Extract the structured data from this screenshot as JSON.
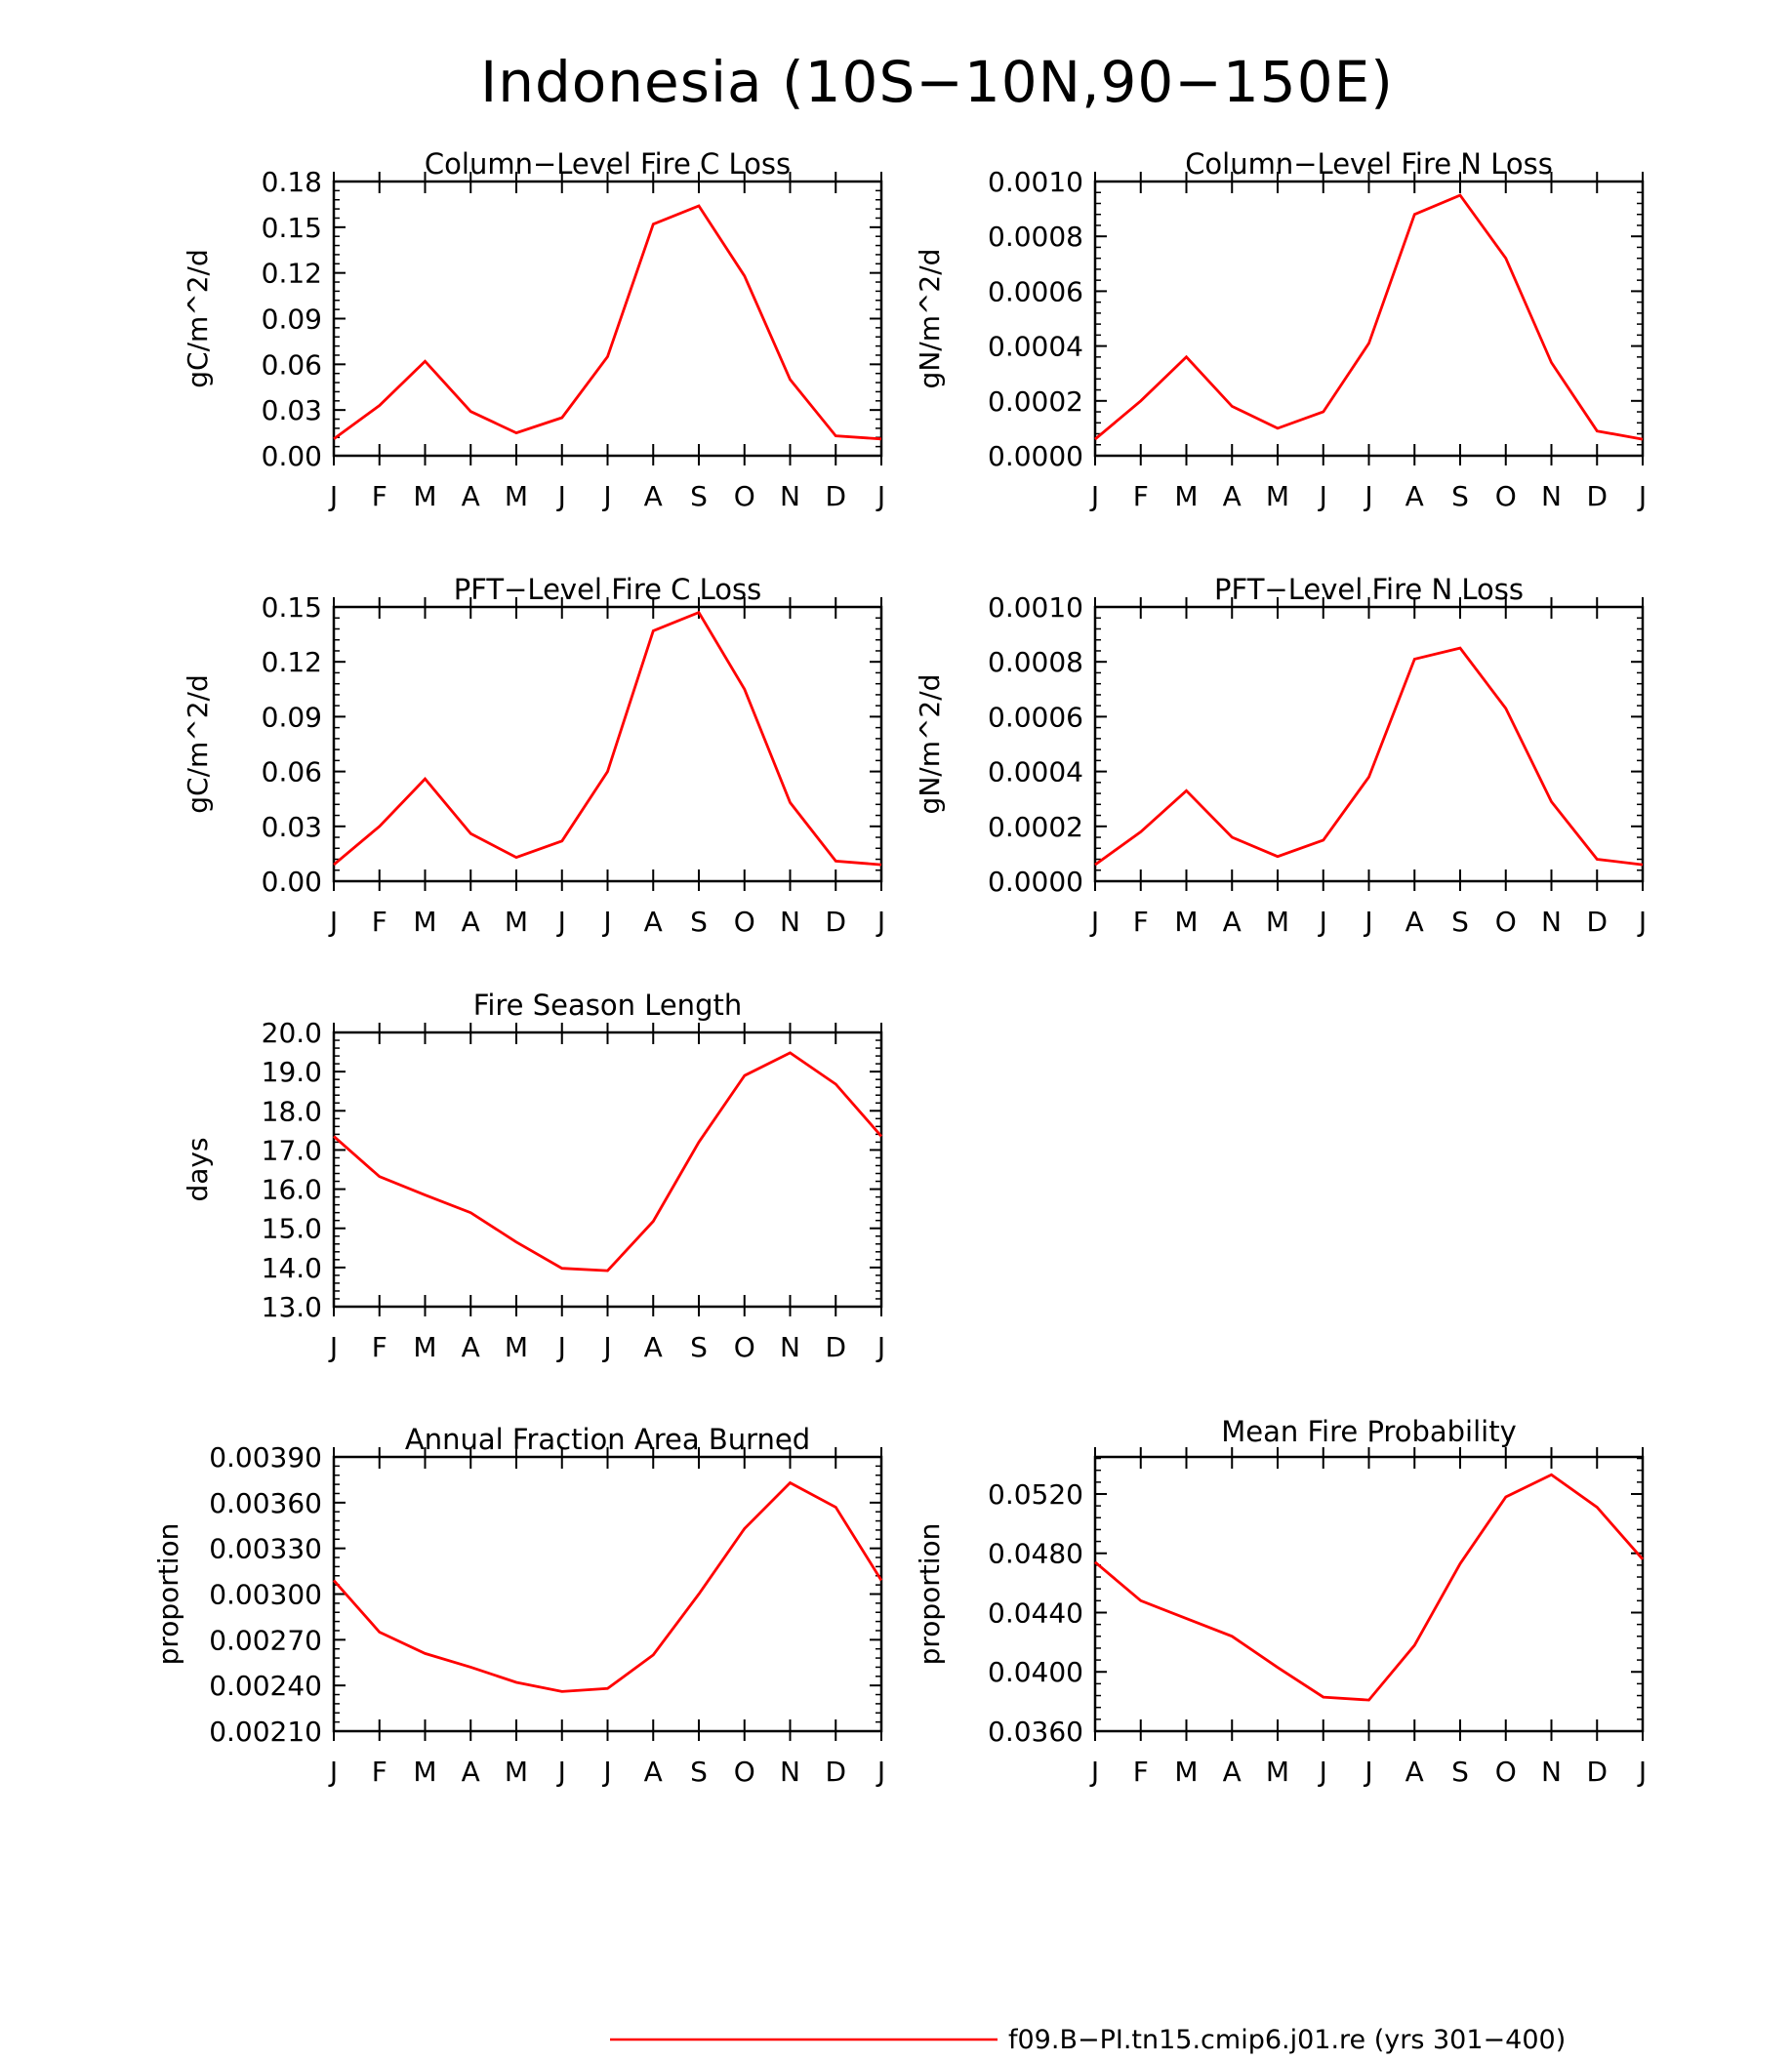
{
  "title": "Indonesia (10S−10N,90−150E)",
  "series_color": "#ff0000",
  "legend": {
    "label": "f09.B−PI.tn15.cmip6.j01.re (yrs 301−400)"
  },
  "chart_data": [
    {
      "type": "line",
      "title": "Column−Level Fire C Loss",
      "ylabel": "gC/m^2/d",
      "x": [
        "J",
        "F",
        "M",
        "A",
        "M",
        "J",
        "J",
        "A",
        "S",
        "O",
        "N",
        "D",
        "J"
      ],
      "ylim": [
        0.0,
        0.18
      ],
      "yticks": [
        "0.00",
        "0.03",
        "0.06",
        "0.09",
        "0.12",
        "0.15",
        "0.18"
      ],
      "series": [
        {
          "values": [
            0.011,
            0.033,
            0.062,
            0.029,
            0.015,
            0.025,
            0.065,
            0.152,
            0.164,
            0.118,
            0.05,
            0.013,
            0.011
          ]
        }
      ]
    },
    {
      "type": "line",
      "title": "Column−Level Fire N Loss",
      "ylabel": "gN/m^2/d",
      "x": [
        "J",
        "F",
        "M",
        "A",
        "M",
        "J",
        "J",
        "A",
        "S",
        "O",
        "N",
        "D",
        "J"
      ],
      "ylim": [
        0.0,
        0.001
      ],
      "yticks": [
        "0.0000",
        "0.0002",
        "0.0004",
        "0.0006",
        "0.0008",
        "0.0010"
      ],
      "series": [
        {
          "values": [
            6e-05,
            0.0002,
            0.00036,
            0.00018,
            0.0001,
            0.00016,
            0.00041,
            0.00088,
            0.00095,
            0.00072,
            0.00034,
            9e-05,
            6e-05
          ]
        }
      ]
    },
    {
      "type": "line",
      "title": "PFT−Level Fire C Loss",
      "ylabel": "gC/m^2/d",
      "x": [
        "J",
        "F",
        "M",
        "A",
        "M",
        "J",
        "J",
        "A",
        "S",
        "O",
        "N",
        "D",
        "J"
      ],
      "ylim": [
        0.0,
        0.15
      ],
      "yticks": [
        "0.00",
        "0.03",
        "0.06",
        "0.09",
        "0.12",
        "0.15"
      ],
      "series": [
        {
          "values": [
            0.009,
            0.03,
            0.056,
            0.026,
            0.013,
            0.022,
            0.06,
            0.137,
            0.147,
            0.105,
            0.043,
            0.011,
            0.009
          ]
        }
      ]
    },
    {
      "type": "line",
      "title": "PFT−Level Fire N Loss",
      "ylabel": "gN/m^2/d",
      "x": [
        "J",
        "F",
        "M",
        "A",
        "M",
        "J",
        "J",
        "A",
        "S",
        "O",
        "N",
        "D",
        "J"
      ],
      "ylim": [
        0.0,
        0.001
      ],
      "yticks": [
        "0.0000",
        "0.0002",
        "0.0004",
        "0.0006",
        "0.0008",
        "0.0010"
      ],
      "series": [
        {
          "values": [
            6e-05,
            0.00018,
            0.00033,
            0.00016,
            9e-05,
            0.00015,
            0.00038,
            0.00081,
            0.00085,
            0.00063,
            0.00029,
            8e-05,
            6e-05
          ]
        }
      ]
    },
    {
      "type": "line",
      "title": "Fire Season Length",
      "ylabel": "days",
      "x": [
        "J",
        "F",
        "M",
        "A",
        "M",
        "J",
        "J",
        "A",
        "S",
        "O",
        "N",
        "D",
        "J"
      ],
      "ylim": [
        13.0,
        20.0
      ],
      "yticks": [
        "13.0",
        "14.0",
        "15.0",
        "16.0",
        "17.0",
        "18.0",
        "19.0",
        "20.0"
      ],
      "series": [
        {
          "values": [
            17.35,
            16.32,
            15.85,
            15.4,
            14.65,
            13.98,
            13.92,
            15.18,
            17.2,
            18.9,
            19.48,
            18.68,
            17.35
          ]
        }
      ]
    },
    {
      "type": "line",
      "title": "Annual Fraction Area Burned",
      "ylabel": "proportion",
      "x": [
        "J",
        "F",
        "M",
        "A",
        "M",
        "J",
        "J",
        "A",
        "S",
        "O",
        "N",
        "D",
        "J"
      ],
      "ylim": [
        0.0021,
        0.0039
      ],
      "yticks": [
        "0.00210",
        "0.00240",
        "0.00270",
        "0.00300",
        "0.00330",
        "0.00360",
        "0.00390"
      ],
      "series": [
        {
          "values": [
            0.00309,
            0.00275,
            0.00261,
            0.00252,
            0.00242,
            0.00236,
            0.00238,
            0.0026,
            0.003,
            0.00343,
            0.00373,
            0.00357,
            0.00309
          ]
        }
      ]
    },
    {
      "type": "line",
      "title": "Mean Fire Probability",
      "ylabel": "proportion",
      "x": [
        "J",
        "F",
        "M",
        "A",
        "M",
        "J",
        "J",
        "A",
        "S",
        "O",
        "N",
        "D",
        "J"
      ],
      "ylim": [
        0.036,
        0.0545
      ],
      "yticks": [
        "0.0360",
        "0.0400",
        "0.0440",
        "0.0480",
        "0.0520"
      ],
      "series": [
        {
          "values": [
            0.0474,
            0.0448,
            0.0436,
            0.0424,
            0.0403,
            0.0383,
            0.0381,
            0.0418,
            0.0473,
            0.0518,
            0.0533,
            0.0511,
            0.0476
          ]
        }
      ]
    }
  ]
}
